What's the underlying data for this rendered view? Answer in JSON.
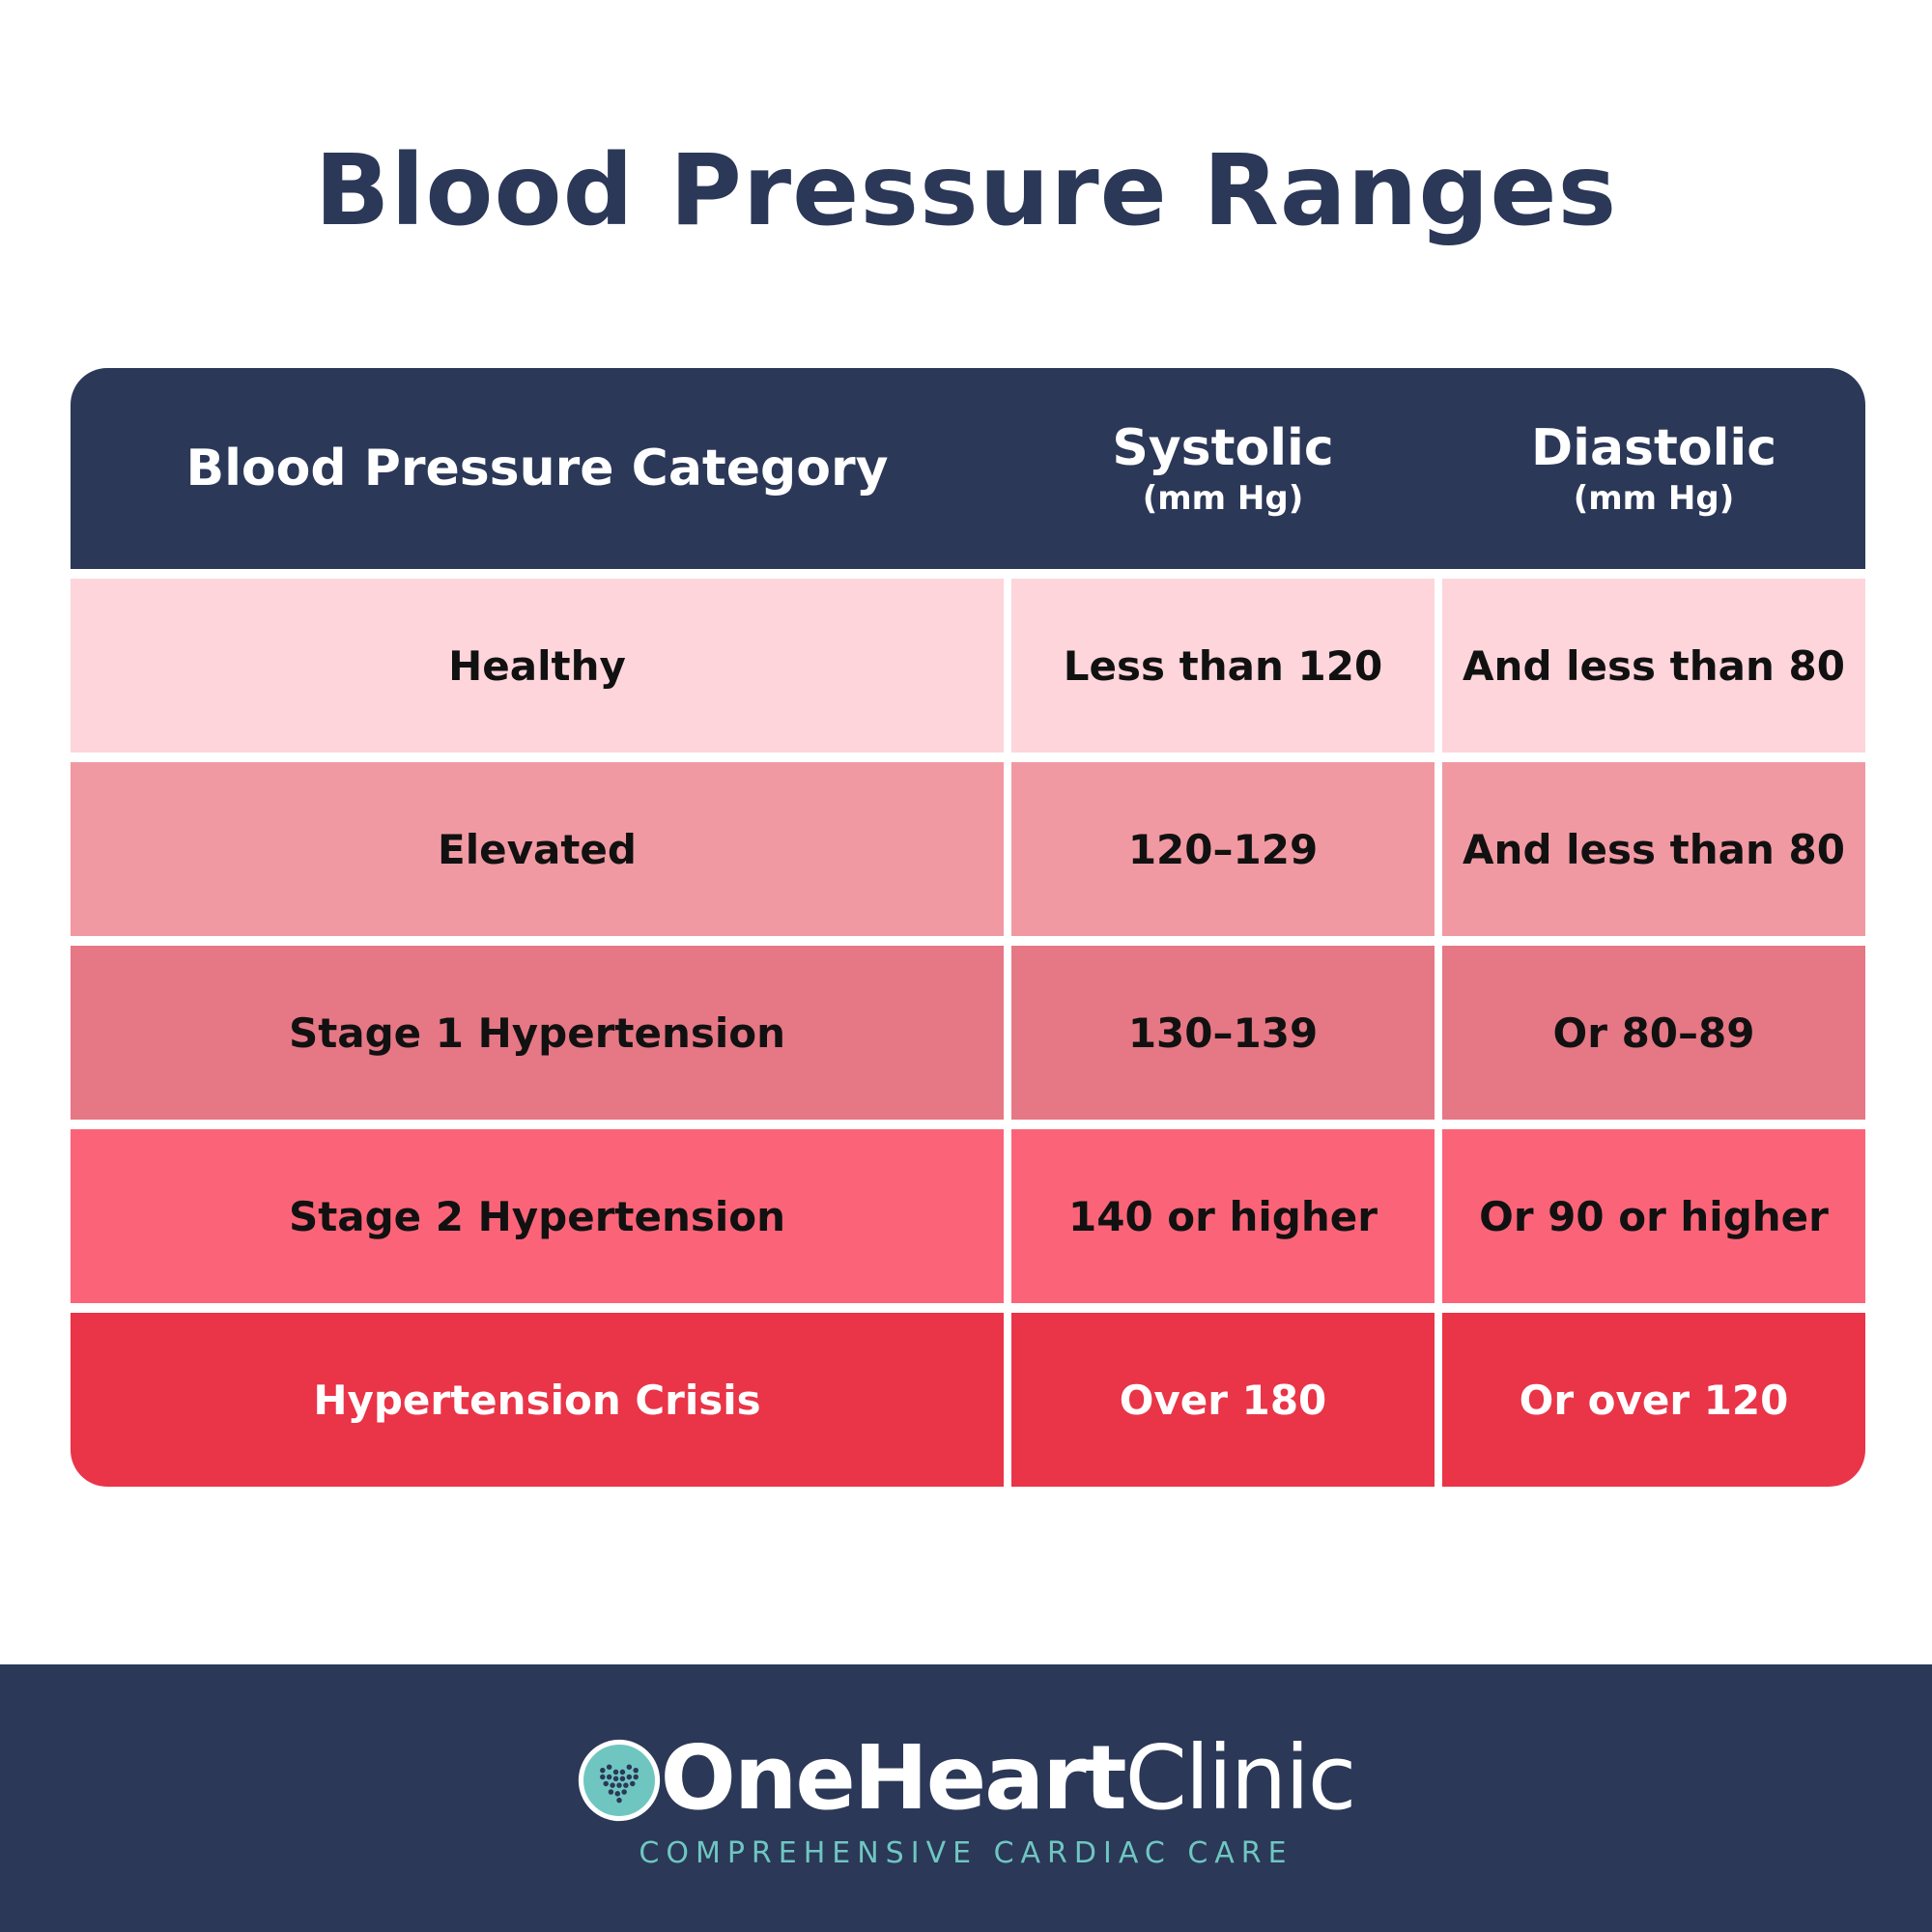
{
  "title": "Blood Pressure Ranges",
  "table": {
    "headers": [
      {
        "label": "Blood Pressure Category",
        "unit": ""
      },
      {
        "label": "Systolic",
        "unit": "(mm Hg)"
      },
      {
        "label": "Diastolic",
        "unit": "(mm Hg)"
      }
    ],
    "rows": [
      {
        "category": "Healthy",
        "systolic": "Less than 120",
        "diastolic": "And less than 80",
        "color": "#fdd5db",
        "text_color": "#111111"
      },
      {
        "category": "Elevated",
        "systolic": "120–129",
        "diastolic": "And less than 80",
        "color": "#f199a2",
        "text_color": "#111111"
      },
      {
        "category": "Stage 1 Hypertension",
        "systolic": "130–139",
        "diastolic": "Or 80–89",
        "color": "#e67785",
        "text_color": "#111111"
      },
      {
        "category": "Stage 2 Hypertension",
        "systolic": "140 or higher",
        "diastolic": "Or 90 or higher",
        "color": "#fb6478",
        "text_color": "#111111"
      },
      {
        "category": "Hypertension Crisis",
        "systolic": "Over 180",
        "diastolic": "Or over 120",
        "color": "#ea3448",
        "text_color": "#ffffff"
      }
    ]
  },
  "footer": {
    "brand_strong": "OneHeart",
    "brand_light": "Clinic",
    "tagline": "COMPREHENSIVE CARDIAC CARE",
    "logo_icon": "heart-pulse-icon"
  },
  "colors": {
    "navy": "#2b3858",
    "accent_teal": "#6fc6c1"
  }
}
